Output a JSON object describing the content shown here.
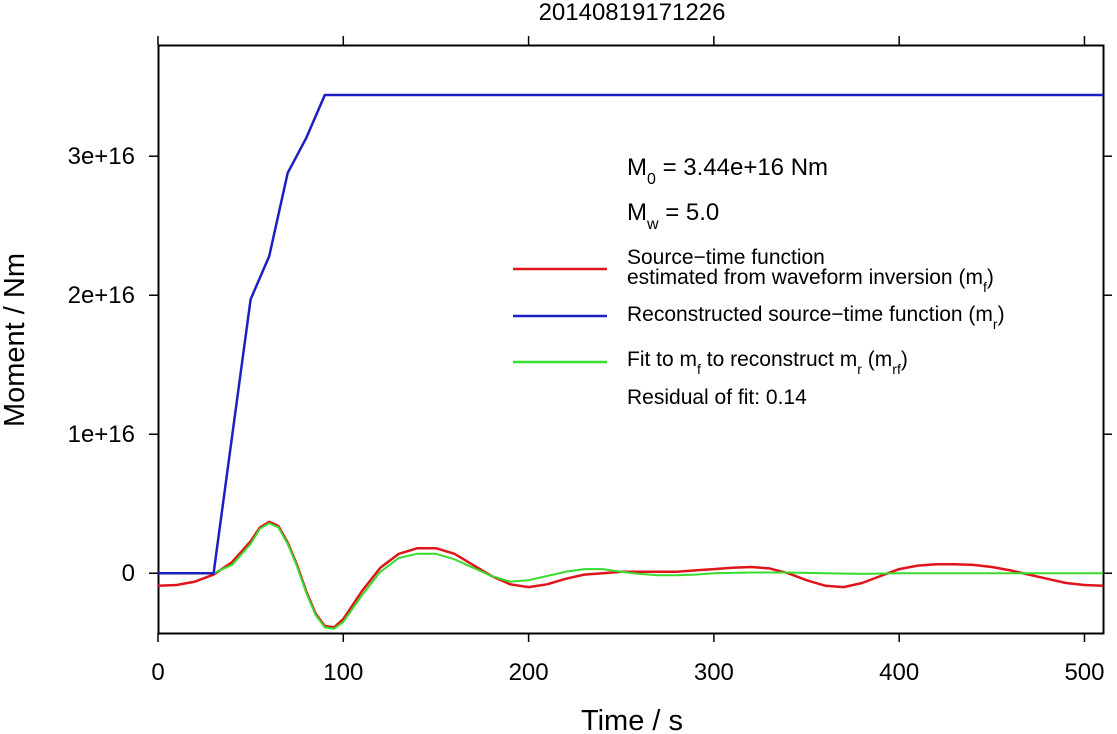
{
  "chart_data": {
    "type": "line",
    "title": "20140819171226",
    "xlabel": "Time / s",
    "ylabel": "Moment / Nm",
    "xlim": [
      0,
      510
    ],
    "ylim": [
      -4300000000000000.0,
      3.8e+16
    ],
    "x_ticks": [
      0,
      100,
      200,
      300,
      400,
      500
    ],
    "x_tick_labels": [
      "0",
      "100",
      "200",
      "300",
      "400",
      "500"
    ],
    "y_ticks": [
      0,
      1e+16,
      2e+16,
      3e+16
    ],
    "y_tick_labels": [
      "0",
      "1e+16",
      "2e+16",
      "3e+16"
    ],
    "grid": false,
    "legend_position": "right",
    "annotations": {
      "m0": {
        "main": "M",
        "sub": "0",
        "rest": " = 3.44e+16 Nm"
      },
      "mw": {
        "main": "M",
        "sub": "w",
        "rest": " = 5.0"
      },
      "residual": "Residual of fit: 0.14"
    },
    "series": [
      {
        "key": "mf",
        "color": "#e0151b",
        "legend_lines": [
          {
            "text": "Source−time function"
          },
          {
            "text": "estimated from waveform inversion (m",
            "sub": "f",
            "after": ")"
          }
        ],
        "x": [
          0,
          10,
          20,
          30,
          40,
          50,
          55,
          60,
          65,
          70,
          75,
          80,
          85,
          90,
          95,
          100,
          110,
          120,
          130,
          140,
          150,
          160,
          170,
          180,
          190,
          200,
          210,
          220,
          230,
          240,
          250,
          260,
          270,
          280,
          290,
          300,
          310,
          320,
          330,
          340,
          350,
          360,
          370,
          380,
          390,
          400,
          410,
          420,
          430,
          440,
          450,
          460,
          470,
          480,
          490,
          500,
          510
        ],
        "values": [
          -900000000000000.0,
          -850000000000000.0,
          -600000000000000.0,
          -100000000000000.0,
          800000000000000.0,
          2300000000000000.0,
          3300000000000000.0,
          3700000000000000.0,
          3400000000000000.0,
          2200000000000000.0,
          600000000000000.0,
          -1300000000000000.0,
          -2900000000000000.0,
          -3800000000000000.0,
          -3900000000000000.0,
          -3300000000000000.0,
          -1300000000000000.0,
          400000000000000.0,
          1400000000000000.0,
          1800000000000000.0,
          1800000000000000.0,
          1400000000000000.0,
          600000000000000.0,
          -200000000000000.0,
          -800000000000000.0,
          -1000000000000000.0,
          -800000000000000.0,
          -400000000000000.0,
          -100000000000000.0,
          0,
          100000000000000.0,
          100000000000000.0,
          100000000000000.0,
          100000000000000.0,
          200000000000000.0,
          300000000000000.0,
          400000000000000.0,
          450000000000000.0,
          350000000000000.0,
          0,
          -500000000000000.0,
          -900000000000000.0,
          -1000000000000000.0,
          -700000000000000.0,
          -200000000000000.0,
          300000000000000.0,
          550000000000000.0,
          650000000000000.0,
          650000000000000.0,
          600000000000000.0,
          450000000000000.0,
          200000000000000.0,
          -100000000000000.0,
          -400000000000000.0,
          -700000000000000.0,
          -850000000000000.0,
          -900000000000000.0
        ]
      },
      {
        "key": "mr",
        "color": "#1c1fc2",
        "legend_lines": [
          {
            "text": "Reconstructed source−time function (m",
            "sub": "r",
            "after": ")"
          }
        ],
        "x": [
          0,
          30,
          50,
          60,
          70,
          80,
          90,
          510
        ],
        "values": [
          0,
          0,
          1.97e+16,
          2.28e+16,
          2.88e+16,
          3.13e+16,
          3.44e+16,
          3.44e+16
        ]
      },
      {
        "key": "mrf",
        "color": "#38dc2e",
        "legend_lines": [
          {
            "text": "Fit to m",
            "sub": "f",
            "after": " to reconstruct m",
            "sub2": "r",
            "after2": " (m",
            "sub3": "rf",
            "after3": ")"
          }
        ],
        "x": [
          0,
          10,
          20,
          30,
          40,
          50,
          55,
          60,
          65,
          70,
          75,
          80,
          85,
          90,
          95,
          100,
          110,
          120,
          130,
          140,
          150,
          160,
          170,
          180,
          190,
          200,
          210,
          220,
          230,
          240,
          250,
          260,
          270,
          280,
          290,
          300,
          320,
          340,
          360,
          380,
          400,
          420,
          440,
          460,
          480,
          500,
          510
        ],
        "values": [
          0,
          0,
          0,
          0,
          600000000000000.0,
          2100000000000000.0,
          3200000000000000.0,
          3600000000000000.0,
          3300000000000000.0,
          2100000000000000.0,
          500000000000000.0,
          -1400000000000000.0,
          -3000000000000000.0,
          -3900000000000000.0,
          -4000000000000000.0,
          -3500000000000000.0,
          -1600000000000000.0,
          100000000000000.0,
          1100000000000000.0,
          1400000000000000.0,
          1400000000000000.0,
          1000000000000000.0,
          400000000000000.0,
          -200000000000000.0,
          -600000000000000.0,
          -500000000000000.0,
          -200000000000000.0,
          100000000000000.0,
          300000000000000.0,
          300000000000000.0,
          100000000000000.0,
          -50000000000000.0,
          -150000000000000.0,
          -150000000000000.0,
          -100000000000000.0,
          0,
          50000000000000.0,
          50000000000000.0,
          0,
          -50000000000000.0,
          0,
          0,
          0,
          0,
          0,
          0,
          0
        ]
      }
    ]
  }
}
